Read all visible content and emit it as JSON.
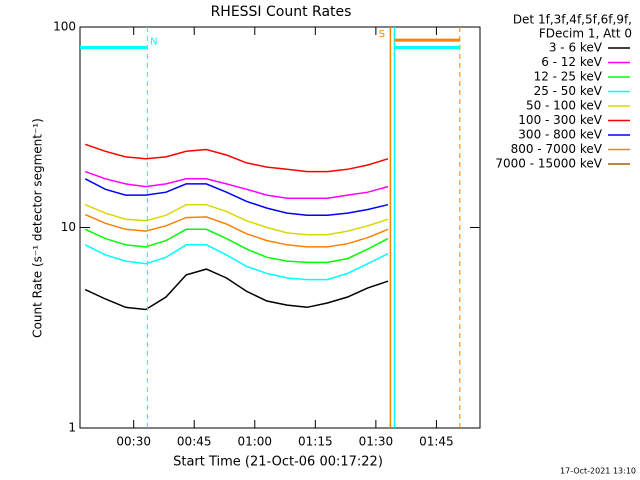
{
  "chart_data": {
    "type": "line",
    "title": "RHESSI Count Rates",
    "xlabel": "Start Time (21-Oct-06 00:17:22)",
    "ylabel": "Count Rate (s⁻¹ detector segment⁻¹)",
    "legend_header": [
      "Det 1f,3f,4f,5f,6f,9f,",
      "FDecim 1, Att 0"
    ],
    "timestamp": "17-Oct-2021 13:10",
    "log_y": true,
    "xlim": [
      16.7,
      115.8
    ],
    "ylim": [
      1,
      100
    ],
    "xticks": [
      {
        "value": 30,
        "label": "00:30"
      },
      {
        "value": 45,
        "label": "00:45"
      },
      {
        "value": 60,
        "label": "01:00"
      },
      {
        "value": 75,
        "label": "01:15"
      },
      {
        "value": 90,
        "label": "01:30"
      },
      {
        "value": 105,
        "label": "01:45"
      }
    ],
    "yticks": [
      1,
      10,
      100
    ],
    "x": [
      18,
      23,
      28,
      33,
      38,
      43,
      48,
      53,
      58,
      63,
      68,
      73,
      78,
      83,
      88,
      93
    ],
    "series": [
      {
        "name": "3 - 6 keV",
        "color": "#000000",
        "values": [
          4.9,
          4.4,
          4.0,
          3.9,
          4.5,
          5.8,
          6.2,
          5.6,
          4.8,
          4.3,
          4.1,
          4.0,
          4.2,
          4.5,
          5.0,
          5.4
        ]
      },
      {
        "name": "6 - 12 keV",
        "color": "#ff00ff",
        "values": [
          19,
          17.5,
          16.5,
          16,
          16.5,
          17.5,
          17.5,
          16.5,
          15.5,
          14.5,
          14,
          14,
          14,
          14.5,
          15,
          16
        ]
      },
      {
        "name": "12 - 25 keV",
        "color": "#00ff00",
        "values": [
          9.8,
          8.8,
          8.2,
          8.0,
          8.6,
          9.8,
          9.8,
          8.8,
          7.8,
          7.1,
          6.8,
          6.7,
          6.7,
          7.0,
          7.8,
          8.8
        ]
      },
      {
        "name": "25 - 50 keV",
        "color": "#00ffff",
        "values": [
          8.2,
          7.3,
          6.8,
          6.6,
          7.1,
          8.2,
          8.2,
          7.3,
          6.4,
          5.9,
          5.6,
          5.5,
          5.5,
          5.9,
          6.6,
          7.4
        ]
      },
      {
        "name": "50 - 100 keV",
        "color": "#d8d800",
        "values": [
          13,
          11.8,
          11,
          10.8,
          11.5,
          13,
          13,
          12,
          10.8,
          10,
          9.4,
          9.2,
          9.2,
          9.6,
          10.2,
          11
        ]
      },
      {
        "name": "100 - 300 keV",
        "color": "#ff0000",
        "values": [
          26,
          24,
          22.5,
          22,
          22.5,
          24,
          24.5,
          23,
          21,
          20,
          19.5,
          19,
          19,
          19.5,
          20.5,
          22
        ]
      },
      {
        "name": "300 - 800 keV",
        "color": "#0000ff",
        "values": [
          17.5,
          15.5,
          14.5,
          14.5,
          15,
          16.5,
          16.5,
          15,
          13.5,
          12.5,
          11.8,
          11.5,
          11.5,
          11.8,
          12.3,
          13
        ]
      },
      {
        "name": "800 - 7000 keV",
        "color": "#ff8000",
        "values": [
          11.6,
          10.5,
          9.8,
          9.6,
          10.2,
          11.2,
          11.3,
          10.4,
          9.3,
          8.6,
          8.2,
          8.0,
          8.0,
          8.3,
          8.9,
          9.8
        ]
      },
      {
        "name": "7000 - 15000 keV",
        "color": "#a06400",
        "values": [
          null,
          null,
          null,
          null,
          null,
          null,
          null,
          null,
          null,
          null,
          null,
          null,
          null,
          null,
          null,
          null
        ]
      }
    ],
    "vlines": [
      {
        "x": 33.4,
        "color": "#00ffff",
        "dashed": true
      },
      {
        "x": 110.8,
        "color": "#ff8000",
        "dashed": true
      },
      {
        "x": 93.6,
        "color": "#ff8000",
        "dashed": false
      },
      {
        "x": 94.6,
        "color": "#00ffff",
        "dashed": false
      }
    ],
    "hsegments": [
      {
        "x": [
          16.7,
          33.4
        ],
        "y": 79,
        "color": "#00ffff"
      },
      {
        "x": [
          94.6,
          110.8
        ],
        "y": 86,
        "color": "#ff8000"
      },
      {
        "x": [
          94.6,
          110.8
        ],
        "y": 79,
        "color": "#00ffff"
      }
    ],
    "annotations": [
      {
        "text": "N",
        "x": 35,
        "y": 79,
        "color": "#00ffff"
      },
      {
        "text": "S",
        "x": 91.5,
        "y": 86,
        "color": "#ff8000"
      }
    ]
  }
}
